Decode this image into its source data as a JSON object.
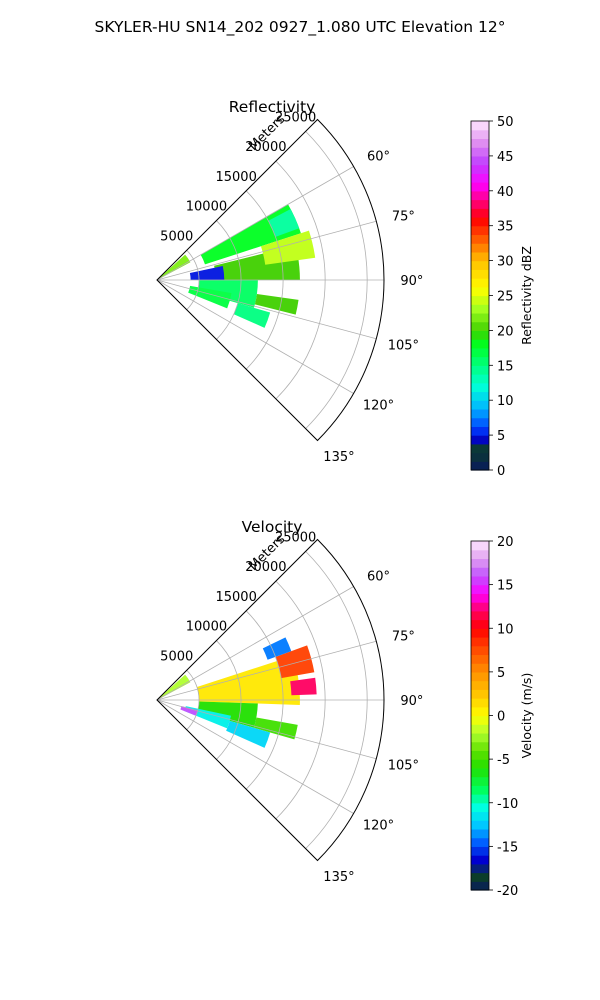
{
  "figure": {
    "suptitle": "SKYLER-HU  SN14_202  0927_1.080 UTC Elevation 12°"
  },
  "chart_data": [
    {
      "type": "polar-sector",
      "title": "Reflectivity",
      "radial_label": "Meters",
      "radial_ticks": [
        "5000",
        "10000",
        "15000",
        "20000",
        "25000"
      ],
      "radial_tick_values": [
        5000,
        10000,
        15000,
        20000,
        25000
      ],
      "rlim": [
        0,
        27000
      ],
      "angular_ticks": [
        "60°",
        "75°",
        "90°",
        "105°",
        "120°",
        "135°"
      ],
      "angular_tick_values": [
        60,
        75,
        90,
        105,
        120,
        135
      ],
      "thetalim": [
        45,
        135
      ],
      "grid": true,
      "colorbar": {
        "label": "Reflectivity dBZ",
        "vmin": 0,
        "vmax": 50,
        "tick_labels": [
          "0",
          "5",
          "10",
          "15",
          "20",
          "25",
          "30",
          "35",
          "40",
          "45",
          "50"
        ],
        "tick_values": [
          0,
          5,
          10,
          15,
          20,
          25,
          30,
          35,
          40,
          45,
          50
        ]
      },
      "echoes": [
        {
          "azimuth": [
            48,
            62
          ],
          "range": [
            300,
            4500
          ],
          "value": 22
        },
        {
          "azimuth": [
            60,
            72
          ],
          "range": [
            6000,
            18000
          ],
          "value": 18
        },
        {
          "azimuth": [
            76,
            90
          ],
          "range": [
            7000,
            17000
          ],
          "value": 20
        },
        {
          "azimuth": [
            72,
            82
          ],
          "range": [
            13000,
            19000
          ],
          "value": 24
        },
        {
          "azimuth": [
            90,
            106
          ],
          "range": [
            5000,
            12000
          ],
          "value": 16
        },
        {
          "azimuth": [
            100,
            112
          ],
          "range": [
            4000,
            9000
          ],
          "value": 17
        },
        {
          "azimuth": [
            98,
            104
          ],
          "range": [
            12000,
            17000
          ],
          "value": 20
        },
        {
          "azimuth": [
            106,
            114
          ],
          "range": [
            10000,
            14000
          ],
          "value": 15
        },
        {
          "azimuth": [
            62,
            70
          ],
          "range": [
            15000,
            18000
          ],
          "value": 14
        },
        {
          "azimuth": [
            78,
            90
          ],
          "range": [
            4000,
            8000
          ],
          "value": 5
        }
      ]
    },
    {
      "type": "polar-sector",
      "title": "Velocity",
      "radial_label": "Meters",
      "radial_ticks": [
        "5000",
        "10000",
        "15000",
        "20000",
        "25000"
      ],
      "radial_tick_values": [
        5000,
        10000,
        15000,
        20000,
        25000
      ],
      "rlim": [
        0,
        27000
      ],
      "angular_ticks": [
        "60°",
        "75°",
        "90°",
        "105°",
        "120°",
        "135°"
      ],
      "angular_tick_values": [
        60,
        75,
        90,
        105,
        120,
        135
      ],
      "thetalim": [
        45,
        135
      ],
      "grid": true,
      "colorbar": {
        "label": "Velocity (m/s)",
        "vmin": -20,
        "vmax": 20,
        "tick_labels": [
          "-20",
          "-15",
          "-10",
          "-5",
          "0",
          "5",
          "10",
          "15",
          "20"
        ],
        "tick_values": [
          -20,
          -15,
          -10,
          -5,
          0,
          5,
          10,
          15,
          20
        ]
      },
      "echoes": [
        {
          "azimuth": [
            48,
            62
          ],
          "range": [
            300,
            4500
          ],
          "value": -2
        },
        {
          "azimuth": [
            72,
            92
          ],
          "range": [
            5000,
            17000
          ],
          "value": 1
        },
        {
          "azimuth": [
            70,
            80
          ],
          "range": [
            15000,
            19000
          ],
          "value": 8
        },
        {
          "azimuth": [
            82,
            88
          ],
          "range": [
            16000,
            19000
          ],
          "value": 12
        },
        {
          "azimuth": [
            92,
            106
          ],
          "range": [
            5000,
            12000
          ],
          "value": -6
        },
        {
          "azimuth": [
            100,
            106
          ],
          "range": [
            12000,
            17000
          ],
          "value": -5
        },
        {
          "azimuth": [
            102,
            112
          ],
          "range": [
            3500,
            9000
          ],
          "value": -11
        },
        {
          "azimuth": [
            106,
            114
          ],
          "range": [
            9000,
            14000
          ],
          "value": -12
        },
        {
          "azimuth": [
            104,
            112
          ],
          "range": [
            3000,
            5000
          ],
          "value": 16
        },
        {
          "azimuth": [
            64,
            70
          ],
          "range": [
            14000,
            17000
          ],
          "value": -14
        }
      ]
    }
  ]
}
